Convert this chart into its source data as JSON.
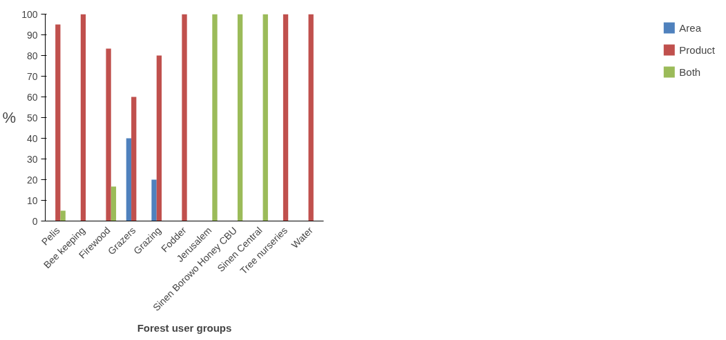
{
  "chart_data": {
    "type": "bar",
    "xlabel": "Forest user groups",
    "ylabel": "%",
    "categories": [
      "Pelis",
      "Bee keeping",
      "Firewood",
      "Grazers",
      "Grazing",
      "Fodder",
      "Jerusalem",
      "Sinen Borowo Honey CBU",
      "Sinen Central",
      "Tree nurseries",
      "Water"
    ],
    "series": [
      {
        "name": "Area",
        "color": "#4f81bd",
        "values": [
          null,
          null,
          null,
          40,
          20,
          null,
          null,
          null,
          null,
          null,
          null
        ]
      },
      {
        "name": "Product",
        "color": "#c0504d",
        "values": [
          95,
          100,
          83.3,
          60,
          80,
          100,
          null,
          null,
          null,
          100,
          100
        ]
      },
      {
        "name": "Both",
        "color": "#9bbb59",
        "values": [
          5,
          null,
          16.7,
          null,
          null,
          null,
          100,
          100,
          100,
          null,
          null
        ]
      }
    ],
    "ylim": [
      0,
      100
    ],
    "yticks": [
      0,
      10,
      20,
      30,
      40,
      50,
      60,
      70,
      80,
      90,
      100
    ],
    "grid": false,
    "legend": "right"
  }
}
